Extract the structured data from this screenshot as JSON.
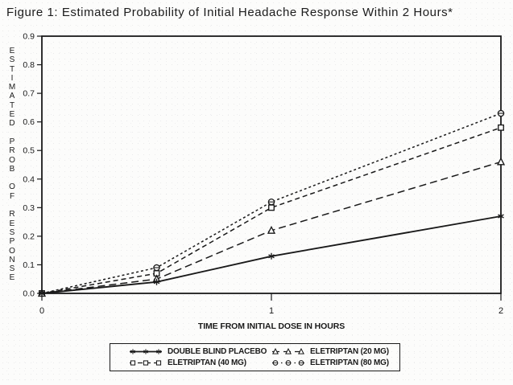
{
  "title": "Figure 1: Estimated Probability of Initial Headache Response Within 2 Hours*",
  "chart_data": {
    "type": "line",
    "title": "Figure 1: Estimated Probability of Initial Headache Response Within 2 Hours*",
    "xlabel": "TIME FROM INITIAL DOSE IN HOURS",
    "ylabel": "ESTIMATED PROB OF RESPONSE",
    "x": [
      0,
      0.5,
      1,
      2
    ],
    "xlim": [
      0,
      2
    ],
    "ylim": [
      0,
      0.9
    ],
    "xticks": [
      "0",
      "1",
      "2"
    ],
    "yticks": [
      "0.0",
      "0.1",
      "0.2",
      "0.3",
      "0.4",
      "0.5",
      "0.6",
      "0.7",
      "0.8",
      "0.9"
    ],
    "grid": false,
    "legend_position": "bottom",
    "series": [
      {
        "name": "DOUBLE BLIND PLACEBO",
        "marker": "star",
        "linestyle": "solid",
        "dash": "",
        "values": [
          0.0,
          0.04,
          0.13,
          0.27
        ]
      },
      {
        "name": "ELETRIPTAN (20 MG)",
        "marker": "triangle",
        "linestyle": "long-dash",
        "dash": "9,5",
        "values": [
          0.0,
          0.05,
          0.22,
          0.46
        ]
      },
      {
        "name": "ELETRIPTAN (40 MG)",
        "marker": "square",
        "linestyle": "medium-dash",
        "dash": "6,4",
        "values": [
          0.0,
          0.07,
          0.3,
          0.58
        ]
      },
      {
        "name": "ELETRIPTAN (80 MG)",
        "marker": "circle-bar",
        "linestyle": "short-dash",
        "dash": "3,3",
        "values": [
          0.0,
          0.09,
          0.32,
          0.63
        ]
      }
    ],
    "colors": {
      "ink": "#1a1a1a",
      "background": "#fcfcfb"
    }
  }
}
